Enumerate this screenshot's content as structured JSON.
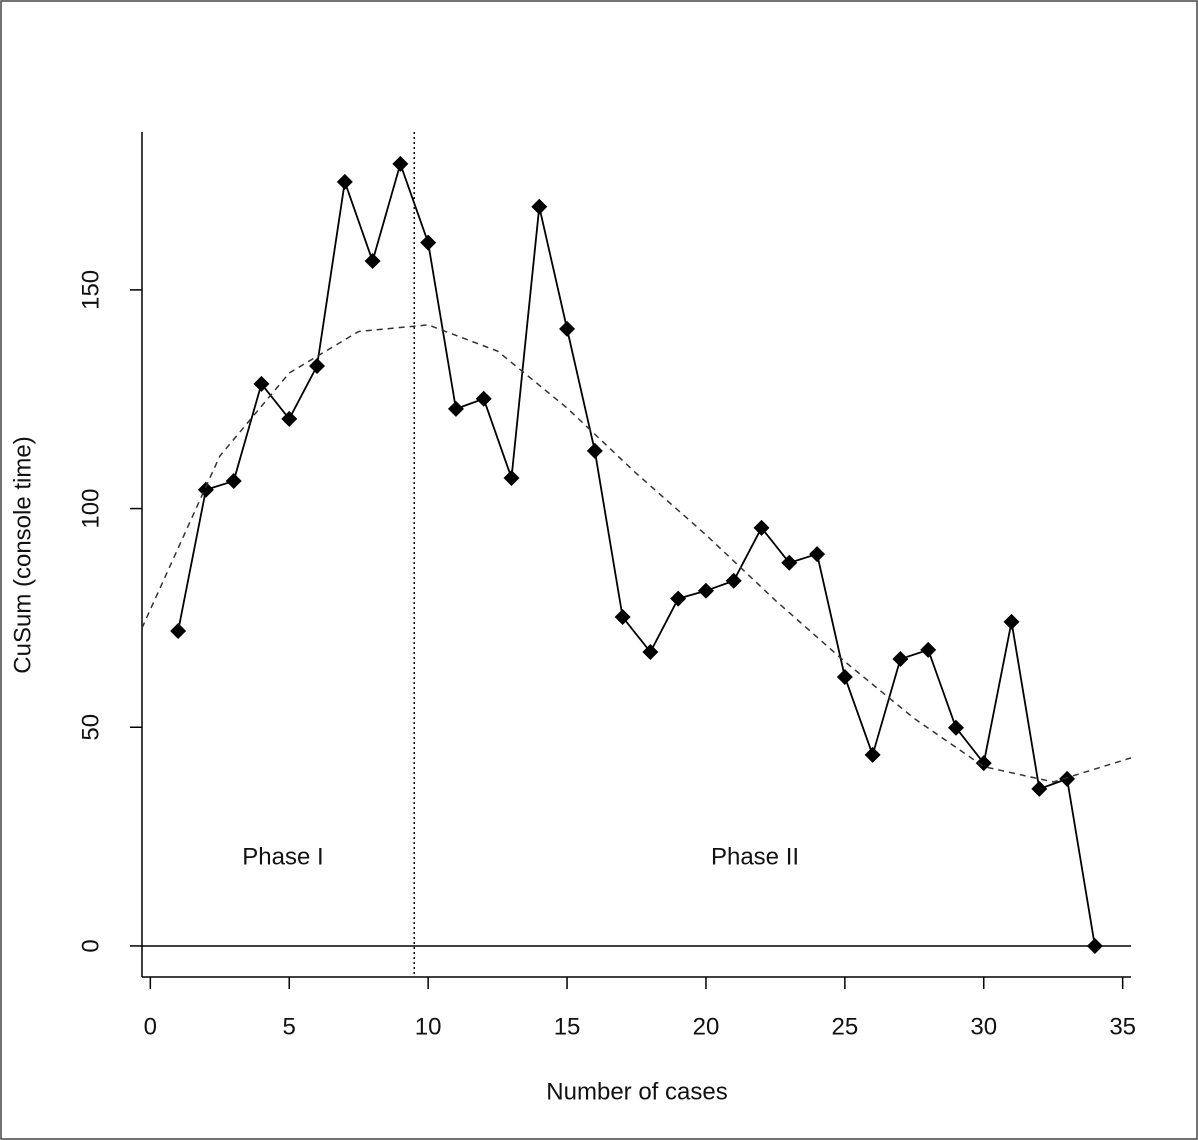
{
  "chart_data": {
    "type": "line",
    "x_label": "Number of cases",
    "y_label": "CuSum (console time)",
    "x": [
      1,
      2,
      3,
      4,
      5,
      6,
      7,
      8,
      9,
      10,
      11,
      12,
      13,
      14,
      15,
      16,
      17,
      18,
      19,
      20,
      21,
      22,
      23,
      24,
      25,
      26,
      27,
      28,
      29,
      30,
      31,
      32,
      33,
      34
    ],
    "series": [
      {
        "color": "#000000",
        "marker": "diamond",
        "line": "solid",
        "values": [
          72.0,
          104.3,
          106.3,
          128.5,
          120.5,
          132.6,
          174.7,
          156.6,
          178.8,
          160.8,
          122.8,
          125.1,
          107.0,
          169.0,
          141.1,
          113.2,
          75.2,
          67.2,
          79.4,
          81.2,
          83.5,
          95.6,
          87.6,
          89.6,
          61.5,
          43.7,
          65.6,
          67.7,
          49.9,
          41.8,
          74.1,
          35.9,
          38.2,
          0
        ]
      },
      {
        "color": "#333333",
        "marker": "none",
        "line": "dashed",
        "x": [
          -0.3,
          2.5,
          5,
          7.5,
          10,
          12.5,
          15,
          17.5,
          20,
          22.5,
          25,
          27.5,
          30,
          32.5,
          35.3
        ],
        "values": [
          72.7,
          112,
          131,
          140.5,
          142,
          136,
          123,
          108,
          94,
          79,
          65,
          52,
          41,
          37.5,
          43
        ]
      }
    ],
    "vline": 9.5,
    "hline": 0,
    "annotations": [
      "Phase I",
      "Phase II"
    ],
    "xlim": [
      -0.3,
      35.3
    ],
    "ylim": [
      -7.1,
      186.1
    ],
    "xticks": [
      0,
      5,
      10,
      15,
      20,
      25,
      30,
      35
    ],
    "yticks": [
      0,
      50,
      100,
      150
    ]
  }
}
